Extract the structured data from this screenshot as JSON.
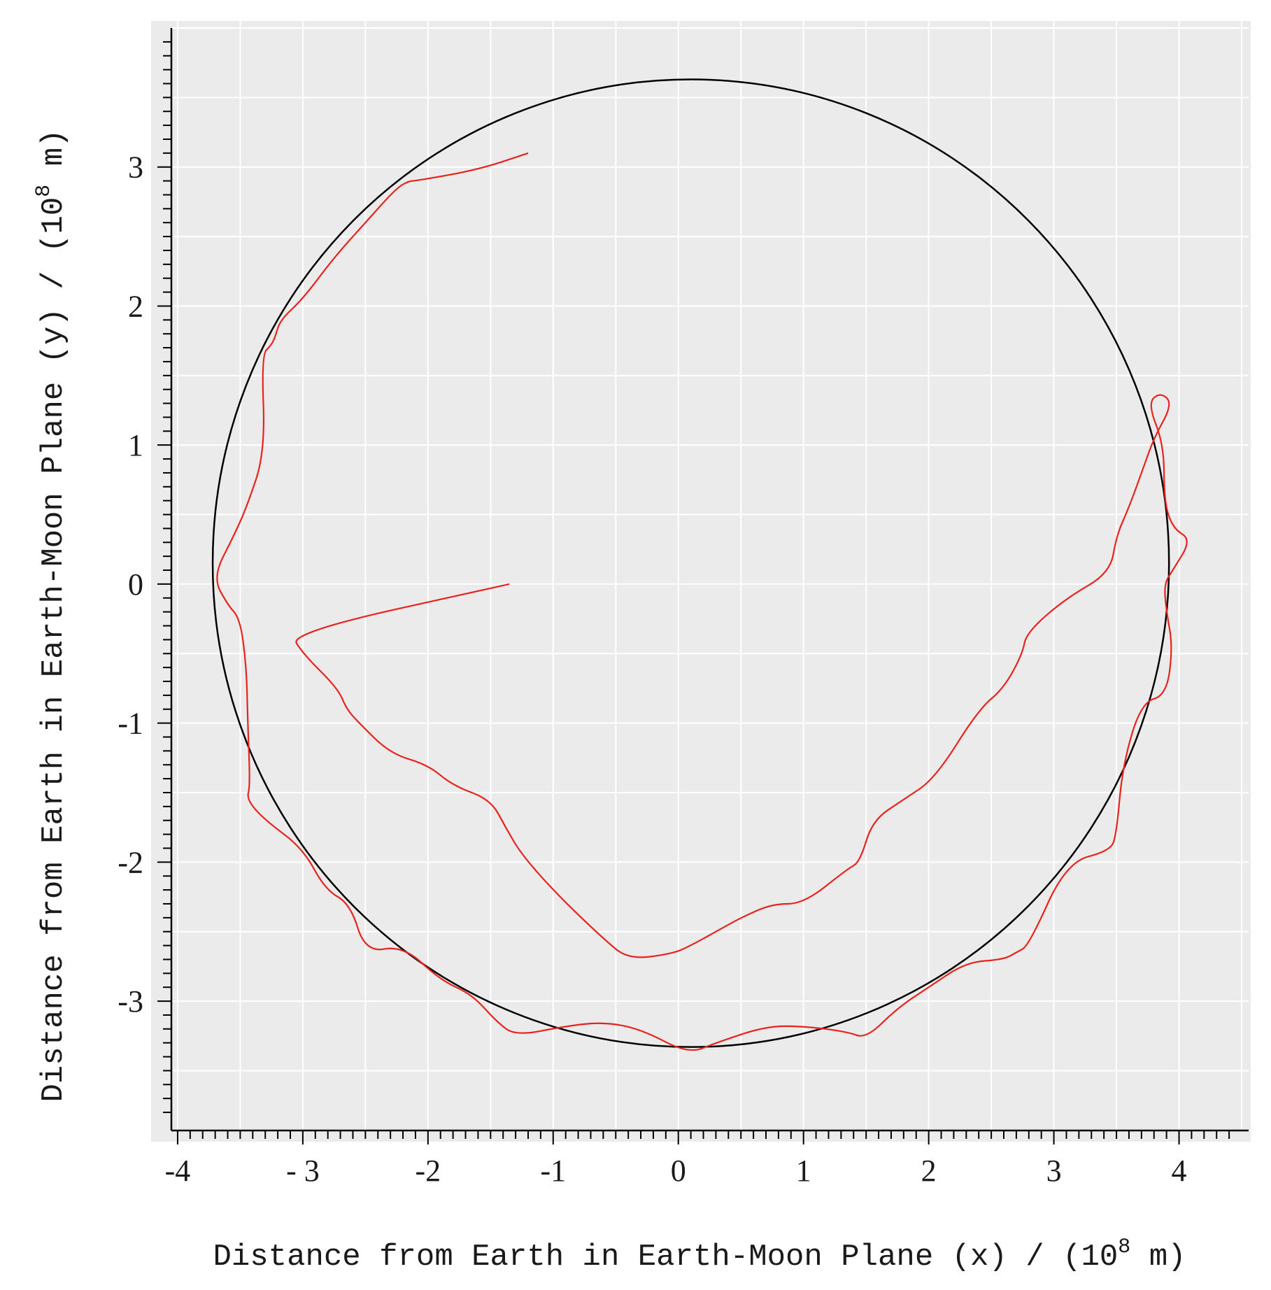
{
  "chart_data": {
    "type": "line",
    "xlabel": {
      "text": "Distance from Earth in Earth-Moon Plane (x) / (10",
      "exponent": "8",
      "suffix": " m)"
    },
    "ylabel": {
      "text": "Distance from Earth in Earth-Moon Plane (y) / (10",
      "exponent": "8",
      "suffix": " m)"
    },
    "xlim": [
      -4.05,
      4.5
    ],
    "ylim": [
      -3.85,
      4.0
    ],
    "x_ticks": [
      -4,
      -3,
      -2,
      -1,
      0,
      1,
      2,
      3,
      4
    ],
    "x_tick_labels": [
      "-4",
      "- 3",
      "-2",
      "-1",
      "0",
      "1",
      "2",
      "3",
      "4"
    ],
    "y_ticks": [
      -3,
      -2,
      -1,
      0,
      1,
      2,
      3
    ],
    "y_tick_labels": [
      "-3",
      "-2",
      "-1",
      "0",
      "1",
      "2",
      "3"
    ],
    "grid": true,
    "colors": {
      "background": "#ebebeb",
      "grid": "#ffffff",
      "moon_orbit": "#000000",
      "sun_orbit": "#e8231e"
    },
    "series": [
      {
        "color": "#000000",
        "shape": "ellipse",
        "center": [
          0.1,
          0.15
        ],
        "radius_x": 3.82,
        "radius_y": 3.48
      },
      {
        "color": "#e8231e",
        "shape": "path",
        "x": [
          -1.2,
          -1.6,
          -2.1,
          -2.15,
          -2.25,
          -2.5,
          -2.75,
          -3.0,
          -3.18,
          -3.22,
          -3.25,
          -3.33,
          -3.3,
          -3.45,
          -3.55,
          -3.72,
          -3.6,
          -3.5,
          -3.45,
          -3.44,
          -3.42,
          -3.45,
          -3.3,
          -3.0,
          -2.82,
          -2.62,
          -2.5,
          -2.2,
          -1.9,
          -1.65,
          -1.45,
          -1.3,
          -0.9,
          -0.6,
          -0.3,
          0.08,
          0.3,
          0.7,
          1.0,
          1.35,
          1.5,
          1.75,
          2.0,
          2.3,
          2.6,
          2.7,
          2.8,
          3.1,
          3.45,
          3.5,
          3.55,
          3.7,
          3.9,
          3.95,
          3.9,
          3.88,
          3.95,
          4.1,
          3.95,
          3.88,
          3.88,
          3.75,
          3.85,
          3.95,
          3.8,
          3.72,
          3.6,
          3.5,
          3.45,
          3.1,
          2.78,
          2.75,
          2.6,
          2.4,
          2.05,
          1.8,
          1.55,
          1.45,
          1.35,
          1.0,
          0.75,
          0.5,
          0.3,
          0.1,
          -0.05,
          -0.4,
          -0.6,
          -0.95,
          -1.25,
          -1.38,
          -1.5,
          -1.8,
          -2.0,
          -2.3,
          -2.55,
          -2.65,
          -2.72,
          -3.0,
          -3.1,
          -1.35
        ],
        "y": [
          3.1,
          2.98,
          2.9,
          2.9,
          2.85,
          2.6,
          2.35,
          2.05,
          1.9,
          1.78,
          1.72,
          1.65,
          0.95,
          0.55,
          0.35,
          0.05,
          -0.15,
          -0.25,
          -0.6,
          -1.0,
          -1.45,
          -1.55,
          -1.7,
          -1.9,
          -2.2,
          -2.3,
          -2.65,
          -2.6,
          -2.85,
          -2.95,
          -3.15,
          -3.25,
          -3.18,
          -3.15,
          -3.2,
          -3.38,
          -3.3,
          -3.18,
          -3.18,
          -3.22,
          -3.27,
          -3.05,
          -2.9,
          -2.72,
          -2.7,
          -2.65,
          -2.6,
          -2.0,
          -1.92,
          -1.8,
          -1.3,
          -0.85,
          -0.8,
          -0.45,
          -0.2,
          0.0,
          0.1,
          0.32,
          0.4,
          0.6,
          1.0,
          1.3,
          1.38,
          1.3,
          1.05,
          0.85,
          0.55,
          0.35,
          0.08,
          -0.1,
          -0.35,
          -0.5,
          -0.75,
          -0.9,
          -1.4,
          -1.55,
          -1.7,
          -2.0,
          -2.05,
          -2.3,
          -2.3,
          -2.4,
          -2.5,
          -2.6,
          -2.66,
          -2.7,
          -2.55,
          -2.25,
          -1.95,
          -1.75,
          -1.55,
          -1.45,
          -1.3,
          -1.22,
          -1.0,
          -0.9,
          -0.75,
          -0.5,
          -0.35,
          0.0
        ]
      }
    ]
  }
}
